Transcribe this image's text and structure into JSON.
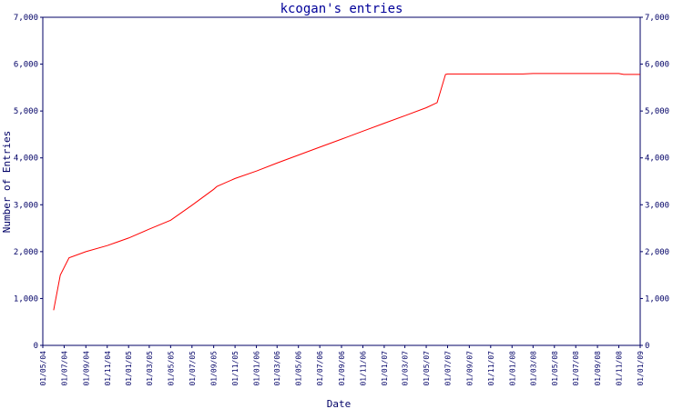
{
  "chart_data": {
    "type": "line",
    "title": "kcogan's entries",
    "xlabel": "Date",
    "ylabel": "Number of Entries",
    "ylim": [
      0,
      7000
    ],
    "yticks": [
      0,
      1000,
      2000,
      3000,
      4000,
      5000,
      6000,
      7000
    ],
    "ytick_labels": [
      "0",
      "1,000",
      "2,000",
      "3,000",
      "4,000",
      "5,000",
      "6,000",
      "7,000"
    ],
    "xlim": [
      "2004-05-01",
      "2009-01-01"
    ],
    "xtick_dates": [
      "2004-05-01",
      "2004-07-01",
      "2004-09-01",
      "2004-11-01",
      "2005-01-01",
      "2005-03-01",
      "2005-05-01",
      "2005-07-01",
      "2005-09-01",
      "2005-11-01",
      "2006-01-01",
      "2006-03-01",
      "2006-05-01",
      "2006-07-01",
      "2006-09-01",
      "2006-11-01",
      "2007-01-01",
      "2007-03-01",
      "2007-05-01",
      "2007-07-01",
      "2007-09-01",
      "2007-11-01",
      "2008-01-01",
      "2008-03-01",
      "2008-05-01",
      "2008-07-01",
      "2008-09-01",
      "2008-11-01",
      "2009-01-01"
    ],
    "xtick_labels": [
      "01/05/04",
      "01/07/04",
      "01/09/04",
      "01/11/04",
      "01/01/05",
      "01/03/05",
      "01/05/05",
      "01/07/05",
      "01/09/05",
      "01/11/05",
      "01/01/06",
      "01/03/06",
      "01/05/06",
      "01/07/06",
      "01/09/06",
      "01/11/06",
      "01/01/07",
      "01/03/07",
      "01/05/07",
      "01/07/07",
      "01/09/07",
      "01/11/07",
      "01/01/08",
      "01/03/08",
      "01/05/08",
      "01/07/08",
      "01/09/08",
      "01/11/08",
      "01/01/09"
    ],
    "grid": false,
    "series": [
      {
        "color": "#ff0000",
        "x": [
          "2004-06-01",
          "2004-06-20",
          "2004-07-15",
          "2004-09-01",
          "2004-11-01",
          "2005-01-01",
          "2005-03-01",
          "2005-05-01",
          "2005-07-01",
          "2005-09-01",
          "2005-09-10",
          "2005-11-01",
          "2006-01-01",
          "2006-03-01",
          "2006-05-01",
          "2006-07-01",
          "2006-09-01",
          "2006-11-01",
          "2007-01-01",
          "2007-03-01",
          "2007-05-01",
          "2007-06-01",
          "2007-06-25",
          "2007-07-01",
          "2007-09-01",
          "2007-11-01",
          "2008-01-01",
          "2008-02-01",
          "2008-03-01",
          "2008-05-01",
          "2008-07-01",
          "2008-09-01",
          "2008-11-01",
          "2008-11-15",
          "2009-01-01"
        ],
        "y": [
          750,
          1500,
          1870,
          2000,
          2130,
          2290,
          2480,
          2670,
          2990,
          3330,
          3390,
          3560,
          3720,
          3890,
          4060,
          4230,
          4400,
          4570,
          4740,
          4900,
          5070,
          5180,
          5780,
          5790,
          5790,
          5790,
          5790,
          5790,
          5800,
          5800,
          5800,
          5800,
          5800,
          5780,
          5780
        ]
      }
    ]
  }
}
